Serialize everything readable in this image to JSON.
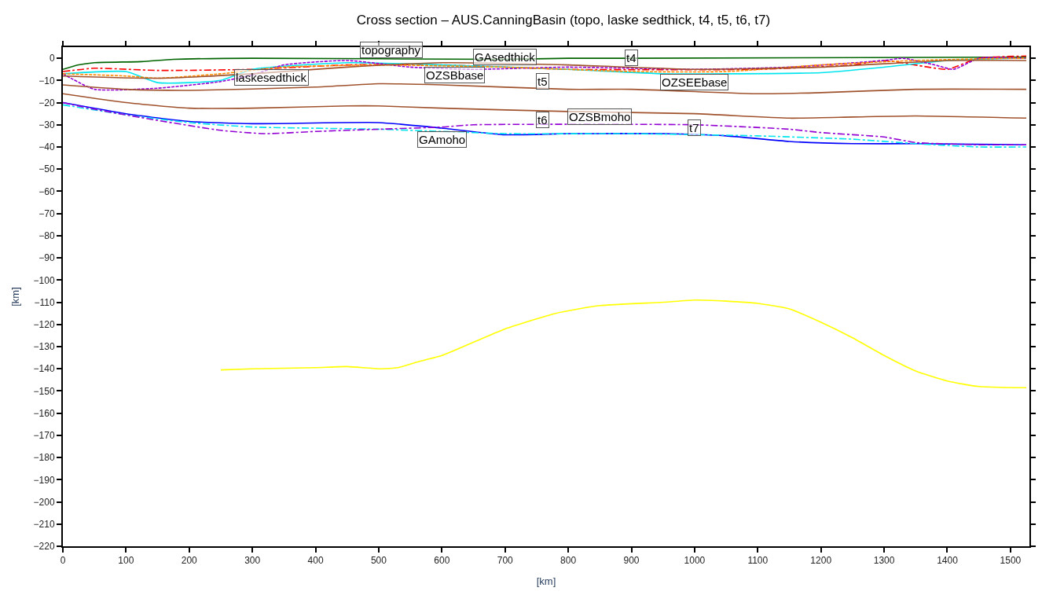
{
  "chart_data": {
    "type": "line",
    "title": "Cross section – AUS.CanningBasin (topo, laske sedthick, t4, t5, t6, t7)",
    "xlabel": "[km]",
    "ylabel": "[km]",
    "xlim": [
      0,
      1530
    ],
    "ylim": [
      -220,
      5
    ],
    "xticks": [
      0,
      100,
      200,
      300,
      400,
      500,
      600,
      700,
      800,
      900,
      1000,
      1100,
      1200,
      1300,
      1400,
      1500
    ],
    "yticks": [
      0,
      -10,
      -20,
      -30,
      -40,
      -50,
      -60,
      -70,
      -80,
      -90,
      -100,
      -110,
      -120,
      -130,
      -140,
      -150,
      -160,
      -170,
      -180,
      -190,
      -200,
      -210,
      -220
    ],
    "series": [
      {
        "color": "#006400",
        "line_style": "solid",
        "x": [
          0,
          25,
          50,
          125,
          175,
          300,
          700,
          800,
          900,
          1525
        ],
        "values": [
          -5,
          -3,
          -2,
          -1.5,
          -0.5,
          0,
          -0.5,
          0,
          0,
          0.5
        ]
      },
      {
        "color": "#ff0000",
        "line_style": "dashdot",
        "x": [
          0,
          50,
          150,
          300,
          450,
          600,
          800,
          1100,
          1250,
          1300,
          1370,
          1400,
          1450,
          1525
        ],
        "values": [
          -6,
          -4.5,
          -5.5,
          -5,
          -3,
          -3,
          -5,
          -5,
          -3,
          -1,
          -4,
          -5,
          0,
          1
        ]
      },
      {
        "color": "#00e5ee",
        "line_style": "solid",
        "x": [
          0,
          100,
          150,
          250,
          300,
          450,
          600,
          800,
          950,
          1050,
          1200,
          1300,
          1400,
          1500,
          1525
        ],
        "values": [
          -7,
          -6,
          -11,
          -10,
          -5,
          -2,
          -3,
          -5,
          -7,
          -7,
          -6.5,
          -4,
          -1,
          0,
          0
        ]
      },
      {
        "color": "#9400d3",
        "line_style": "dashed",
        "x": [
          0,
          50,
          150,
          250,
          300,
          350,
          450,
          550,
          650,
          800,
          1000,
          1150,
          1300,
          1330,
          1380,
          1410,
          1450,
          1525
        ],
        "values": [
          -7,
          -14,
          -13.5,
          -10.5,
          -7.5,
          -3,
          -1,
          -4,
          -5,
          -4,
          -5,
          -4,
          -1,
          0,
          -3,
          -5,
          0,
          0
        ]
      },
      {
        "color": "#ff8c00",
        "line_style": "dashed",
        "x": [
          0,
          100,
          150,
          250,
          350,
          500,
          700,
          900,
          1050,
          1200,
          1350,
          1500,
          1525
        ],
        "values": [
          -7,
          -8,
          -9,
          -7,
          -4,
          -3,
          -4,
          -6,
          -6,
          -3,
          -1,
          0,
          0
        ]
      },
      {
        "color": "#a0522d",
        "line_style": "solid",
        "x": [
          0,
          150,
          300,
          450,
          600,
          800,
          1000,
          1200,
          1400,
          1525
        ],
        "values": [
          -8,
          -9,
          -7,
          -4,
          -2,
          -3,
          -5,
          -4,
          -1,
          -1
        ]
      },
      {
        "color": "#a0522d",
        "line_style": "solid",
        "x": [
          0,
          100,
          200,
          400,
          500,
          600,
          800,
          900,
          1100,
          1200,
          1350,
          1525
        ],
        "values": [
          -12,
          -14,
          -14.5,
          -13,
          -11.5,
          -12,
          -14,
          -14,
          -16,
          -15.5,
          -14,
          -14
        ]
      },
      {
        "color": "#a0522d",
        "line_style": "solid",
        "x": [
          0,
          100,
          200,
          300,
          450,
          500,
          600,
          800,
          1000,
          1150,
          1250,
          1350,
          1525
        ],
        "values": [
          -16,
          -20,
          -22.5,
          -22.5,
          -21.5,
          -21.5,
          -22.5,
          -24,
          -25,
          -27,
          -26.5,
          -26,
          -27
        ]
      },
      {
        "color": "#0000ff",
        "line_style": "solid",
        "x": [
          0,
          100,
          200,
          300,
          500,
          600,
          700,
          800,
          950,
          1050,
          1150,
          1250,
          1350,
          1525
        ],
        "values": [
          -20,
          -25,
          -28.5,
          -29.5,
          -29,
          -31.5,
          -34.5,
          -34,
          -34,
          -35,
          -37.5,
          -38.5,
          -38.5,
          -39
        ]
      },
      {
        "color": "#00e5ee",
        "line_style": "dashdot",
        "x": [
          0,
          100,
          200,
          300,
          500,
          600,
          700,
          900,
          1100,
          1250,
          1350,
          1450,
          1525
        ],
        "values": [
          -21,
          -25.5,
          -29,
          -31,
          -32,
          -33,
          -34,
          -34,
          -35,
          -36.5,
          -38.5,
          -40,
          -40
        ]
      },
      {
        "color": "#9400d3",
        "line_style": "dashdot",
        "x": [
          0,
          50,
          150,
          250,
          320,
          400,
          500,
          600,
          650,
          1000,
          1150,
          1200,
          1300,
          1350,
          1450,
          1525
        ],
        "values": [
          -20,
          -23,
          -28,
          -32.5,
          -34,
          -33,
          -32,
          -31,
          -30,
          -30,
          -32,
          -33.5,
          -35.5,
          -38,
          -39,
          -39
        ]
      },
      {
        "color": "#ffff00",
        "line_style": "solid",
        "x": [
          250,
          300,
          400,
          450,
          500,
          530,
          560,
          600,
          700,
          780,
          850,
          950,
          1000,
          1050,
          1100,
          1150,
          1200,
          1250,
          1300,
          1350,
          1400,
          1450,
          1525
        ],
        "values": [
          -140.5,
          -140,
          -139.5,
          -139,
          -140,
          -139.5,
          -137,
          -134,
          -122,
          -115,
          -111.5,
          -110,
          -109,
          -109.5,
          -110.5,
          -113,
          -119,
          -126,
          -134,
          -141,
          -145.5,
          -148,
          -148.5
        ]
      }
    ],
    "annotations": [
      {
        "text": "topography",
        "x": 520,
        "y": 0
      },
      {
        "text": "laskesedthick",
        "x": 330,
        "y": -5
      },
      {
        "text": "GAsedthick",
        "x": 700,
        "y": -3
      },
      {
        "text": "OZSBbase",
        "x": 620,
        "y": -4
      },
      {
        "text": "t4",
        "x": 900,
        "y": -3.5
      },
      {
        "text": "OZSEEbase",
        "x": 1000,
        "y": -7
      },
      {
        "text": "t5",
        "x": 760,
        "y": -14
      },
      {
        "text": "t6",
        "x": 760,
        "y": -24
      },
      {
        "text": "OZSBmoho",
        "x": 850,
        "y": -30
      },
      {
        "text": "GAmoho",
        "x": 600,
        "y": -33
      },
      {
        "text": "t7",
        "x": 1000,
        "y": -35
      }
    ]
  }
}
